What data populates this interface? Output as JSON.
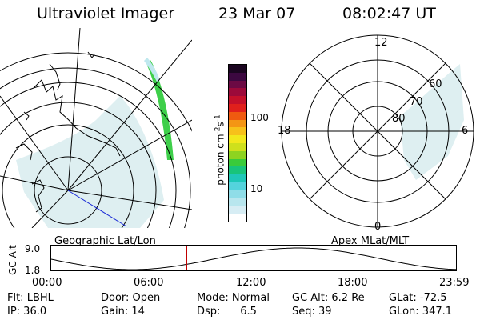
{
  "header": {
    "instrument": "Ultraviolet Imager",
    "date": "23 Mar 07",
    "time": "08:02:47 UT"
  },
  "left_panel": {
    "label": "Geographic Lat/Lon"
  },
  "right_panel": {
    "label": "Apex MLat/MLT",
    "mlt_labels": {
      "top": "12",
      "left": "18",
      "right": "6",
      "bottom": "0"
    },
    "lat_labels": [
      "60",
      "70",
      "80"
    ]
  },
  "colorbar": {
    "title": "photon cm",
    "exp1": "-2",
    "mid": "s",
    "exp2": "-1",
    "tick_100": "100",
    "tick_10": "10",
    "colors": [
      "#ffffff",
      "#d7edf4",
      "#b8e6ee",
      "#8fdde8",
      "#54d3dc",
      "#1fc7b8",
      "#18c47a",
      "#3acb3a",
      "#8ed320",
      "#cfe01c",
      "#f2e81c",
      "#f7c11a",
      "#f49514",
      "#ef5a10",
      "#e0201c",
      "#c4102a",
      "#9c0a3a",
      "#6c0a44",
      "#3c0840",
      "#1a0520"
    ]
  },
  "timeline": {
    "ylabel": "GC Alt",
    "y_top": "9.0",
    "y_bottom": "1.8",
    "ticks": [
      "00:00",
      "06:00",
      "12:00",
      "18:00",
      "23:59"
    ],
    "marker_time_fraction": 0.335,
    "marker_color": "#c00000"
  },
  "info": {
    "flt": "Flt: LBHL",
    "ip": "IP: 36.0",
    "door": "Door: Open",
    "gain": "Gain: 14",
    "mode": "Mode: Normal",
    "dsp": "Dsp:      6.5",
    "gc_alt": "GC Alt: 6.2 Re",
    "seq": "Seq: 39",
    "glat": "GLat: -72.5",
    "glon": "GLon: 347.1"
  }
}
